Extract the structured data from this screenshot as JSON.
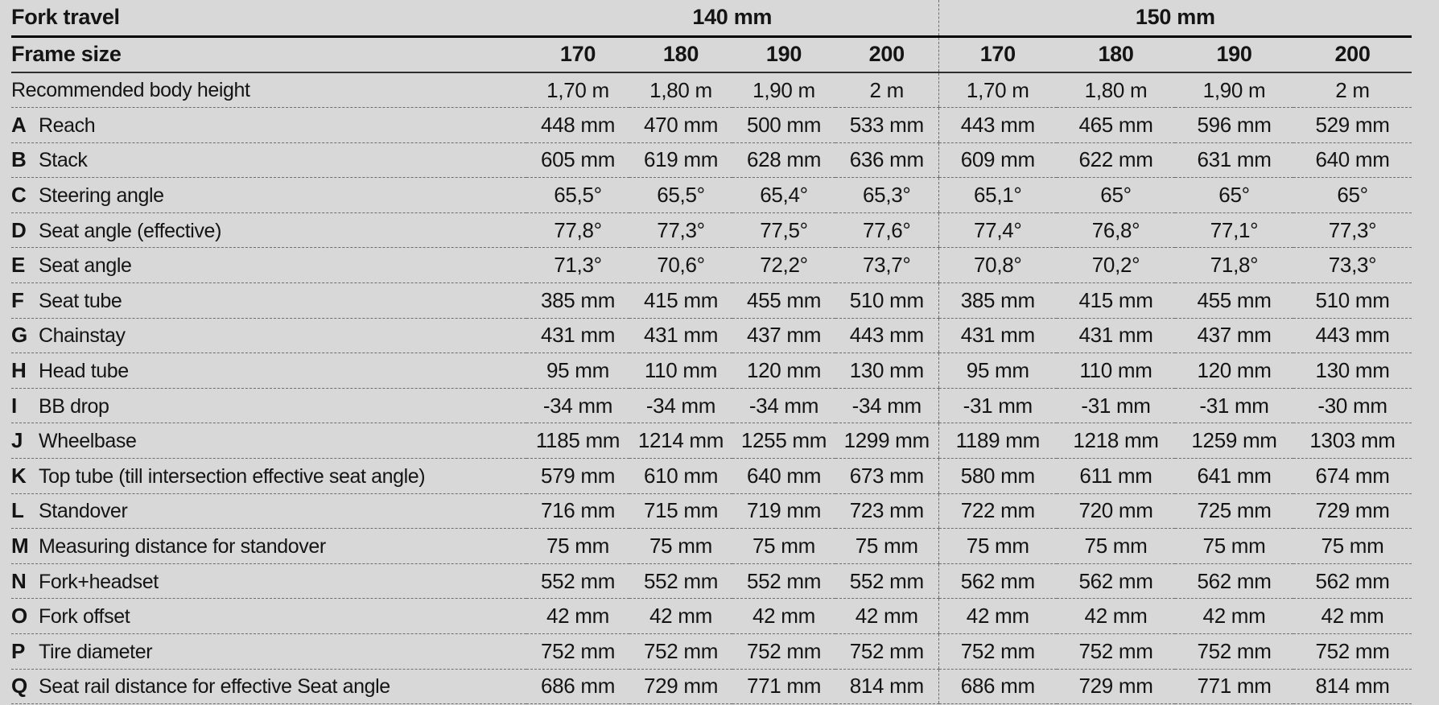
{
  "colors": {
    "background": "#d8d8d8",
    "text": "#141414",
    "solid_rule_top": "#000000",
    "solid_rule_second": "#2e2e2e",
    "dashed_rule": "#6e6e6e"
  },
  "table": {
    "fork_travel_label": "Fork travel",
    "frame_size_label": "Frame size",
    "groups": [
      {
        "label": "140 mm",
        "sizes": [
          "170",
          "180",
          "190",
          "200"
        ]
      },
      {
        "label": "150 mm",
        "sizes": [
          "170",
          "180",
          "190",
          "200"
        ]
      }
    ],
    "rows": [
      {
        "letter": "",
        "label": "Recommended body height",
        "values_140": [
          "1,70 m",
          "1,80 m",
          "1,90 m",
          "2 m"
        ],
        "values_150": [
          "1,70 m",
          "1,80 m",
          "1,90 m",
          "2 m"
        ]
      },
      {
        "letter": "A",
        "label": "Reach",
        "values_140": [
          "448 mm",
          "470 mm",
          "500 mm",
          "533 mm"
        ],
        "values_150": [
          "443 mm",
          "465 mm",
          "596 mm",
          "529 mm"
        ]
      },
      {
        "letter": "B",
        "label": "Stack",
        "values_140": [
          "605 mm",
          "619 mm",
          "628 mm",
          "636 mm"
        ],
        "values_150": [
          "609 mm",
          "622 mm",
          "631 mm",
          "640 mm"
        ]
      },
      {
        "letter": "C",
        "label": "Steering angle",
        "values_140": [
          "65,5°",
          "65,5°",
          "65,4°",
          "65,3°"
        ],
        "values_150": [
          "65,1°",
          "65°",
          "65°",
          "65°"
        ]
      },
      {
        "letter": "D",
        "label": "Seat angle (effective)",
        "values_140": [
          "77,8°",
          "77,3°",
          "77,5°",
          "77,6°"
        ],
        "values_150": [
          "77,4°",
          "76,8°",
          "77,1°",
          "77,3°"
        ]
      },
      {
        "letter": "E",
        "label": "Seat angle",
        "values_140": [
          "71,3°",
          "70,6°",
          "72,2°",
          "73,7°"
        ],
        "values_150": [
          "70,8°",
          "70,2°",
          "71,8°",
          "73,3°"
        ]
      },
      {
        "letter": "F",
        "label": "Seat tube",
        "values_140": [
          "385 mm",
          "415 mm",
          "455 mm",
          "510 mm"
        ],
        "values_150": [
          "385 mm",
          "415 mm",
          "455 mm",
          "510 mm"
        ]
      },
      {
        "letter": "G",
        "label": "Chainstay",
        "values_140": [
          "431 mm",
          "431 mm",
          "437 mm",
          "443 mm"
        ],
        "values_150": [
          "431 mm",
          "431 mm",
          "437 mm",
          "443 mm"
        ]
      },
      {
        "letter": "H",
        "label": "Head tube",
        "values_140": [
          "95 mm",
          "110 mm",
          "120 mm",
          "130 mm"
        ],
        "values_150": [
          "95 mm",
          "110 mm",
          "120 mm",
          "130 mm"
        ]
      },
      {
        "letter": "I",
        "label": "BB drop",
        "values_140": [
          "-34 mm",
          "-34 mm",
          "-34 mm",
          "-34 mm"
        ],
        "values_150": [
          "-31 mm",
          "-31 mm",
          "-31 mm",
          "-30 mm"
        ]
      },
      {
        "letter": "J",
        "label": "Wheelbase",
        "values_140": [
          "1185 mm",
          "1214 mm",
          "1255 mm",
          "1299 mm"
        ],
        "values_150": [
          "1189 mm",
          "1218 mm",
          "1259 mm",
          "1303 mm"
        ]
      },
      {
        "letter": "K",
        "label": "Top tube (till intersection effective seat angle)",
        "values_140": [
          "579 mm",
          "610 mm",
          "640 mm",
          "673 mm"
        ],
        "values_150": [
          "580 mm",
          "611 mm",
          "641 mm",
          "674 mm"
        ]
      },
      {
        "letter": "L",
        "label": "Standover",
        "values_140": [
          "716 mm",
          "715 mm",
          "719 mm",
          "723 mm"
        ],
        "values_150": [
          "722 mm",
          "720 mm",
          "725 mm",
          "729 mm"
        ]
      },
      {
        "letter": "M",
        "label": "Measuring distance for standover",
        "values_140": [
          "75 mm",
          "75 mm",
          "75 mm",
          "75 mm"
        ],
        "values_150": [
          "75 mm",
          "75 mm",
          "75 mm",
          "75 mm"
        ]
      },
      {
        "letter": "N",
        "label": "Fork+headset",
        "values_140": [
          "552 mm",
          "552 mm",
          "552 mm",
          "552 mm"
        ],
        "values_150": [
          "562 mm",
          "562 mm",
          "562 mm",
          "562 mm"
        ]
      },
      {
        "letter": "O",
        "label": "Fork offset",
        "values_140": [
          "42 mm",
          "42 mm",
          "42 mm",
          "42 mm"
        ],
        "values_150": [
          "42 mm",
          "42 mm",
          "42 mm",
          "42 mm"
        ]
      },
      {
        "letter": "P",
        "label": "Tire diameter",
        "values_140": [
          "752 mm",
          "752 mm",
          "752 mm",
          "752 mm"
        ],
        "values_150": [
          "752 mm",
          "752 mm",
          "752 mm",
          "752 mm"
        ]
      },
      {
        "letter": "Q",
        "label": "Seat rail distance for effective Seat angle",
        "values_140": [
          "686 mm",
          "729 mm",
          "771 mm",
          "814 mm"
        ],
        "values_150": [
          "686 mm",
          "729 mm",
          "771 mm",
          "814 mm"
        ]
      }
    ]
  }
}
